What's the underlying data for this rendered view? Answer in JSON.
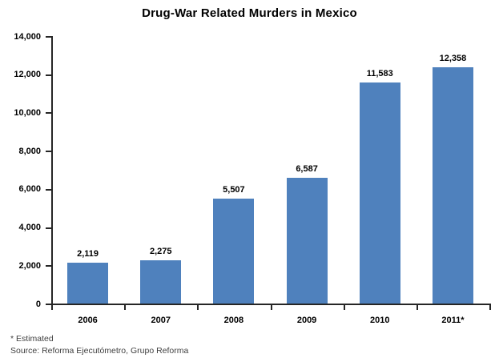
{
  "chart_data": {
    "type": "bar",
    "title": "Drug-War Related Murders in Mexico",
    "categories": [
      "2006",
      "2007",
      "2008",
      "2009",
      "2010",
      "2011*"
    ],
    "values": [
      2119,
      2275,
      5507,
      6587,
      11583,
      12358
    ],
    "data_labels": [
      "2,119",
      "2,275",
      "5,507",
      "6,587",
      "11,583",
      "12,358"
    ],
    "xlabel": "",
    "ylabel": "",
    "ylim": [
      0,
      14000
    ],
    "y_tick_step": 2000,
    "y_tick_labels": [
      "0",
      "2,000",
      "4,000",
      "6,000",
      "8,000",
      "10,000",
      "12,000",
      "14,000"
    ],
    "grid": false,
    "legend": false,
    "bar_color": "#4F81BD",
    "axis_color": "#262626",
    "text_color": "#000000"
  },
  "footnotes": {
    "estimated": "* Estimated",
    "source": "Source: Reforma Ejecutómetro, Grupo Reforma"
  }
}
